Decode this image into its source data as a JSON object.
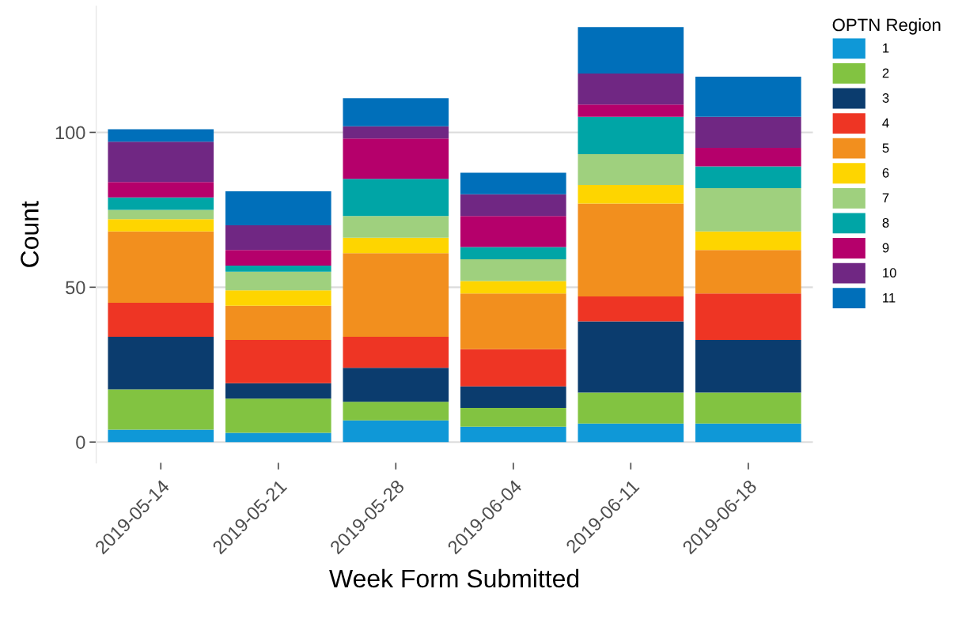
{
  "chart_data": {
    "type": "bar",
    "stacked": true,
    "xlabel": "Week Form Submitted",
    "ylabel": "Count",
    "legend_title": "OPTN Region",
    "legend": "right",
    "grid": "y",
    "categories": [
      "2019-05-14",
      "2019-05-21",
      "2019-05-28",
      "2019-06-04",
      "2019-06-11",
      "2019-06-18"
    ],
    "ylim": [
      -6.7,
      140.7
    ],
    "yticks": [
      0,
      50,
      100
    ],
    "series": [
      {
        "name": "1",
        "color": "#0f98d7",
        "values": [
          4,
          3,
          7,
          5,
          6,
          6
        ]
      },
      {
        "name": "2",
        "color": "#82c341",
        "values": [
          13,
          11,
          6,
          6,
          10,
          10
        ]
      },
      {
        "name": "3",
        "color": "#0b3c6e",
        "values": [
          17,
          5,
          11,
          7,
          23,
          17
        ]
      },
      {
        "name": "4",
        "color": "#ee3524",
        "values": [
          11,
          14,
          10,
          12,
          8,
          15
        ]
      },
      {
        "name": "5",
        "color": "#f28f1e",
        "values": [
          23,
          11,
          27,
          18,
          30,
          14
        ]
      },
      {
        "name": "6",
        "color": "#fed500",
        "values": [
          4,
          5,
          5,
          4,
          6,
          6
        ]
      },
      {
        "name": "7",
        "color": "#9fd07e",
        "values": [
          3,
          6,
          7,
          7,
          10,
          14
        ]
      },
      {
        "name": "8",
        "color": "#00a5a6",
        "values": [
          4,
          2,
          12,
          4,
          12,
          7
        ]
      },
      {
        "name": "9",
        "color": "#b5006b",
        "values": [
          5,
          5,
          13,
          10,
          4,
          6
        ]
      },
      {
        "name": "10",
        "color": "#702783",
        "values": [
          13,
          8,
          4,
          7,
          10,
          10
        ]
      },
      {
        "name": "11",
        "color": "#006fba",
        "values": [
          4,
          11,
          9,
          7,
          15,
          13
        ]
      }
    ]
  }
}
